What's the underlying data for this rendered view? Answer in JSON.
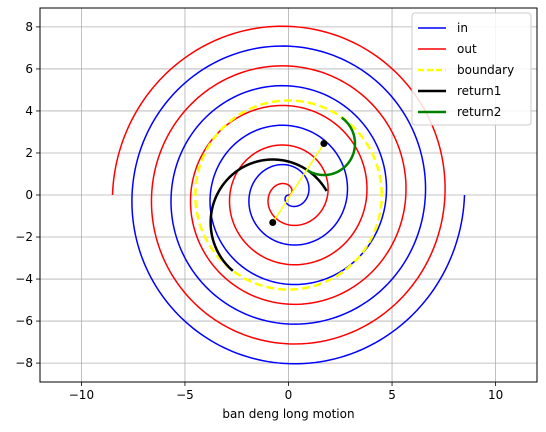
{
  "chart_data": {
    "type": "line",
    "title": "",
    "xlabel": "ban deng long motion",
    "ylabel": "",
    "xlim": [
      -12,
      12
    ],
    "ylim": [
      -8.9,
      8.9
    ],
    "xticks": [
      -10,
      -5,
      0,
      5,
      10
    ],
    "yticks": [
      -8,
      -6,
      -4,
      -2,
      0,
      2,
      4,
      6,
      8
    ],
    "grid": true,
    "legend_position": "top-right",
    "series": [
      {
        "name": "in",
        "kind": "spiral",
        "color": "#0000ff",
        "style": "solid",
        "turns": 4.5,
        "start_angle_deg": 0,
        "end_radius": 8.5,
        "spiral_direction": "counterclockwise",
        "end_point": [
          8.5,
          0
        ]
      },
      {
        "name": "out",
        "kind": "spiral",
        "color": "#ff0000",
        "style": "solid",
        "turns": 4.5,
        "start_angle_deg": 180,
        "end_radius": 8.5,
        "spiral_direction": "counterclockwise",
        "end_point": [
          -8.5,
          0
        ]
      },
      {
        "name": "boundary",
        "kind": "circle",
        "color": "#ffff00",
        "style": "dashed",
        "center": [
          0,
          0
        ],
        "radius": 4.5
      },
      {
        "name": "return1",
        "kind": "arc",
        "color": "#000000",
        "style": "solid",
        "center": [
          -0.76,
          -1.31
        ],
        "radius": 3.0,
        "start_angle_deg": 30,
        "end_angle_deg": 230
      },
      {
        "name": "return2",
        "kind": "arc",
        "color": "#008000",
        "style": "solid",
        "center": [
          1.71,
          2.45
        ],
        "radius": 1.5,
        "start_angle_deg": -125,
        "end_angle_deg": 55
      }
    ],
    "extra_lines": [
      {
        "color": "#ffff00",
        "points": [
          [
            -0.76,
            -1.31
          ],
          [
            1.71,
            2.45
          ]
        ]
      }
    ],
    "points": [
      {
        "x": -0.76,
        "y": -1.31,
        "color": "#000000"
      },
      {
        "x": 1.71,
        "y": 2.45,
        "color": "#000000"
      }
    ]
  }
}
